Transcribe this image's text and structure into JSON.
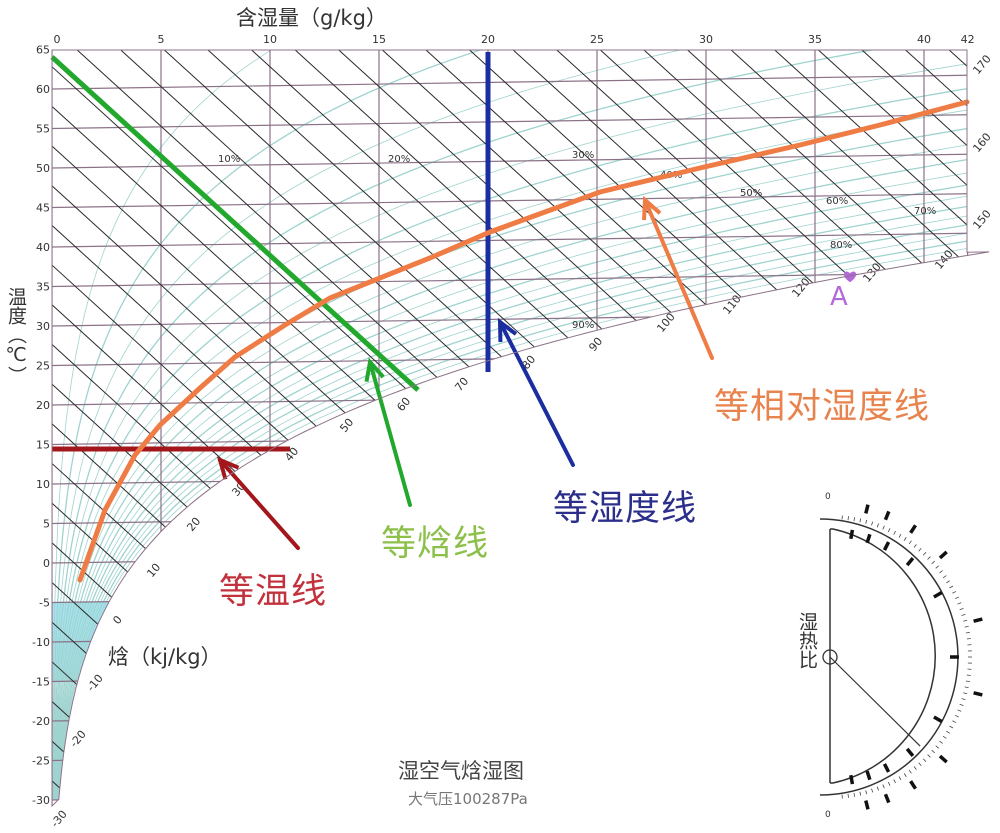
{
  "axes": {
    "moisture_title": "含湿量（g/kg）",
    "temperature_title": "温度（℃）",
    "enthalpy_title": "焓（kj/kg）",
    "moisture_ticks": [
      "0",
      "5",
      "10",
      "15",
      "20",
      "25",
      "30",
      "35",
      "40",
      "42"
    ],
    "temperature_ticks": [
      "65",
      "60",
      "55",
      "50",
      "45",
      "40",
      "35",
      "30",
      "25",
      "20",
      "15",
      "10",
      "5",
      "0",
      "-5",
      "-10",
      "-15",
      "-20",
      "-25",
      "-30"
    ],
    "enthalpy_ticks": [
      "-30",
      "-20",
      "-10",
      "0",
      "10",
      "20",
      "30",
      "40",
      "50",
      "60",
      "70",
      "80",
      "90",
      "100",
      "110",
      "120",
      "130",
      "140",
      "150",
      "160",
      "170"
    ],
    "rh_labels": [
      "10%",
      "20%",
      "30%",
      "40%",
      "50%",
      "60%",
      "70%",
      "80%",
      "90%"
    ]
  },
  "annotations": {
    "isotherm": {
      "label": "等温线",
      "color": "#a3161b",
      "value_c": 15
    },
    "isenthalpic": {
      "label": "等焓线",
      "color": "#22a82c",
      "text_color": "#8cc04a"
    },
    "iso_humidity": {
      "label": "等湿度线",
      "color": "#1b2ea0",
      "text_color": "#2c2f8a",
      "value_g_per_kg": 20
    },
    "iso_relative_humidity": {
      "label": "等相对湿度线",
      "color": "#ef7c45",
      "text_color": "#e8834e"
    },
    "point": {
      "label": "A",
      "color": "#b36ad8"
    }
  },
  "protractor": {
    "label": "湿热比",
    "top_zero": "0",
    "bottom_zero": "0"
  },
  "footer": {
    "title": "湿空气焓湿图",
    "pressure": "大气压100287Pa"
  },
  "colors": {
    "grid": "#8c7288",
    "enthalpy_lines": "#2a2a2a",
    "rh_curves": "#9fd3cf",
    "cold_fill": "#8ddbeb"
  }
}
